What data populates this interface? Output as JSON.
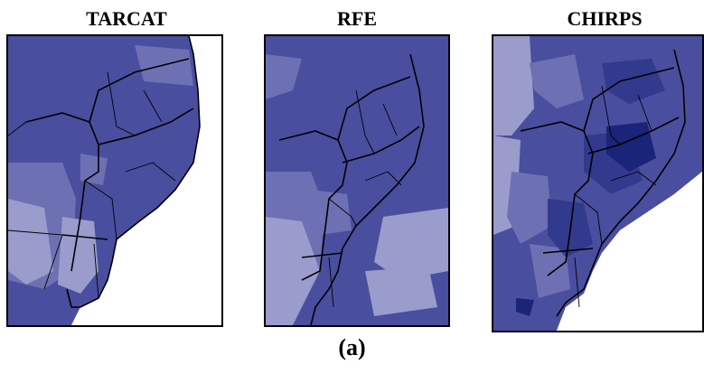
{
  "panels": [
    {
      "title": "TARCAT"
    },
    {
      "title": "RFE"
    },
    {
      "title": "CHIRPS"
    }
  ],
  "caption": "(a)",
  "colors": {
    "light": "#9a9ccc",
    "medium": "#6e70b4",
    "base": "#4a4e9e",
    "dark": "#323a8e",
    "darkest": "#1a2478",
    "border": "#000000",
    "background": "#ffffff"
  }
}
